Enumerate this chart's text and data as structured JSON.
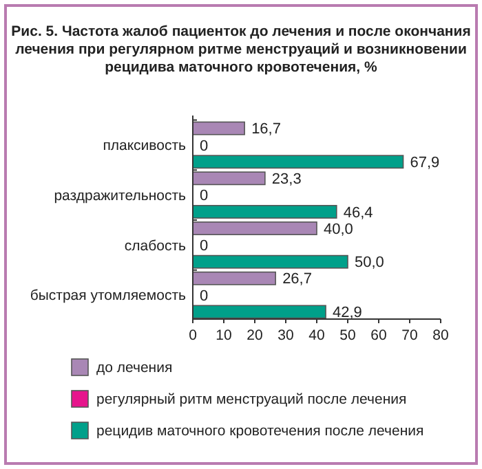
{
  "chart_data": {
    "type": "bar",
    "orientation": "horizontal",
    "title": "Рис. 5. Частота жалоб пациенток до лечения и после окончания лечения при регулярном ритме менструаций и возникновении рецидива маточного кровотечения, %",
    "categories": [
      "плаксивость",
      "раздражительность",
      "слабость",
      "быстрая утомляемость"
    ],
    "series": [
      {
        "name": "до лечения",
        "color": "#a987b5",
        "values": [
          16.7,
          23.3,
          40.0,
          26.7
        ],
        "value_labels": [
          "16,7",
          "23,3",
          "40,0",
          "26,7"
        ]
      },
      {
        "name": "регулярный ритм менструаций после лечения",
        "color": "#e6158c",
        "values": [
          0,
          0,
          0,
          0
        ],
        "value_labels": [
          "0",
          "0",
          "0",
          "0"
        ]
      },
      {
        "name": "рецидив маточного кровотечения после лечения",
        "color": "#00a08a",
        "values": [
          67.9,
          46.4,
          50.0,
          42.9
        ],
        "value_labels": [
          "67,9",
          "46,4",
          "50,0",
          "42,9"
        ]
      }
    ],
    "xlim": [
      0,
      80
    ],
    "xticks": [
      0,
      10,
      20,
      30,
      40,
      50,
      60,
      70,
      80
    ],
    "legend": "bottom",
    "grid": false
  }
}
